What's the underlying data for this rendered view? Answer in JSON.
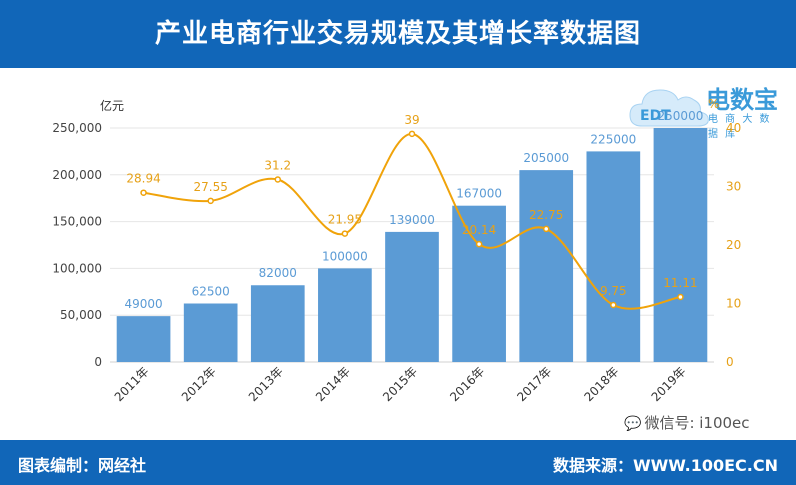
{
  "header": {
    "title": "产业电商行业交易规模及其增长率数据图"
  },
  "footer": {
    "left": "图表编制：网经社",
    "right": "数据来源：WWW.100EC.CN"
  },
  "wechat": {
    "icon": "wechat-icon",
    "text": "微信号: i100ec"
  },
  "logo": {
    "name": "电数宝",
    "sub": "电 商 大 数 据 库",
    "mark": "EDT"
  },
  "colors": {
    "bar": "#5b9bd5",
    "line": "#f0a30a",
    "header": "#1166b8",
    "bar_label": "#5b9bd5",
    "line_label": "#e6a118"
  },
  "chart_data": {
    "type": "bar",
    "categories": [
      "2011年",
      "2012年",
      "2013年",
      "2014年",
      "2015年",
      "2016年",
      "2017年",
      "2018年",
      "2019年"
    ],
    "series": [
      {
        "type": "bar",
        "values": [
          49000,
          62500,
          82000,
          100000,
          139000,
          167000,
          205000,
          225000,
          250000
        ],
        "axis": "left"
      },
      {
        "type": "line",
        "values": [
          28.94,
          27.55,
          31.2,
          21.95,
          39,
          20.14,
          22.75,
          9.75,
          11.11
        ],
        "axis": "right",
        "smooth": true
      }
    ],
    "ylabel": "亿元",
    "y2label": "%",
    "ylim": [
      0,
      250000
    ],
    "y2lim": [
      0,
      40
    ],
    "yticks": [
      "0",
      "50,000",
      "100,000",
      "150,000",
      "200,000",
      "250,000"
    ],
    "y2ticks": [
      "0",
      "10",
      "20",
      "30",
      "40"
    ],
    "grid": true
  }
}
